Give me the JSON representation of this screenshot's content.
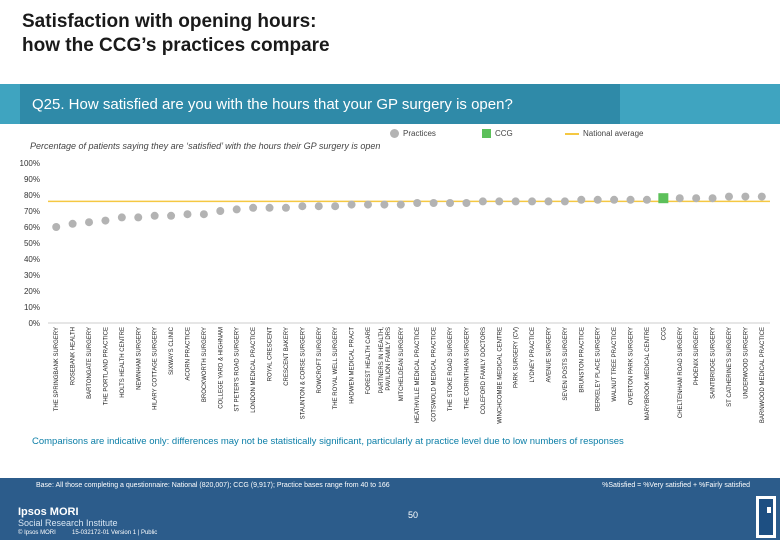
{
  "page": {
    "title_line1": "Satisfaction with opening hours:",
    "title_line2": "how the CCG’s practices compare",
    "question": "Q25. How satisfied are you with the hours that your GP surgery is open?",
    "subtitle": "Percentage of patients saying they are ‘satisfied’ with the hours their GP surgery is open",
    "note": "Comparisons are indicative only: differences may not be statistically significant, particularly at practice level due to low numbers of responses",
    "base": "Base: All those completing a questionnaire: National (820,007); CCG (9,917); Practice bases range from 40 to 166",
    "key": "%Satisfied = %Very satisfied + %Fairly satisfied",
    "brand_line1": "Ipsos MORI",
    "brand_line2": "Social Research Institute",
    "copyright": "© Ipsos MORI",
    "version": "15-032172-01 Version 1 | Public",
    "page_number": "50"
  },
  "colors": {
    "practice": "#b3b3b3",
    "ccg": "#5cc05a",
    "national": "#f5c842",
    "footer": "#2c5c8b",
    "accent": "#3fa4c0"
  },
  "chart_data": {
    "type": "scatter",
    "title": "Percentage of patients saying they are ‘satisfied’ with the hours their GP surgery is open",
    "ylim": [
      0,
      100
    ],
    "yticks": [
      "0%",
      "10%",
      "20%",
      "30%",
      "40%",
      "50%",
      "60%",
      "70%",
      "80%",
      "90%",
      "100%"
    ],
    "legend": {
      "practices": "Practices",
      "ccg": "CCG",
      "national": "National average"
    },
    "national_average": 76,
    "categories": [
      "THE SPRINGBANK SURGERY",
      "ROSEBANK HEALTH",
      "BARTONGATE SURGERY",
      "THE PORTLAND PRACTICE",
      "HOLTS HEALTH CENTRE",
      "NEWNHAM SURGERY",
      "HILARY COTTAGE SURGERY",
      "SIXWAYS CLINIC",
      "ACORN PRACTICE",
      "BROCKWORTH SURGERY",
      "COLLEGE YARD & HIGHNAM",
      "ST PETER'S ROAD SURGERY",
      "LONDON MEDICAL PRACTICE",
      "ROYAL CRESCENT",
      "CRESCENT BAKERY",
      "STAUNTON & CORSE SURGERY",
      "ROWCROFT SURGERY",
      "THE ROYAL WELL SURGERY",
      "HADWEN MEDICAL PRACT",
      "FOREST HEALTH CARE",
      "PARTNERS IN HEALTH, PAVILION FAMILY DRS",
      "MITCHELDEAN SURGERY",
      "HEATHVILLE MEDICAL PRACTICE",
      "COTSWOLD MEDICAL PRACTICE",
      "THE STOKE ROAD SURGERY",
      "THE CORINTHIAN SURGERY",
      "COLEFORD FAMILY DOCTORS",
      "WINCHCOMBE MEDICAL CENTRE",
      "PARK SURGERY (CV)",
      "LYDNEY PRACTICE",
      "AVENUE SURGERY",
      "SEVEN POSTS SURGERY",
      "BRUNSTON PRACTICE",
      "BERKELEY PLACE SURGERY",
      "WALNUT TREE PRACTICE",
      "OVERTON PARK SURGERY",
      "MARYBROOK MEDICAL CENTRE",
      "CCG",
      "CHELTENHAM ROAD SURGERY",
      "PHOENIX SURGERY",
      "SAINTBRIDGE SURGERY",
      "ST CATHERINE'S SURGERY",
      "UNDERWOOD SURGERY",
      "BARNWOOD MEDICAL PRACTICE"
    ],
    "values": [
      60,
      62,
      63,
      64,
      66,
      66,
      67,
      67,
      68,
      68,
      70,
      71,
      72,
      72,
      72,
      73,
      73,
      73,
      74,
      74,
      74,
      74,
      75,
      75,
      75,
      75,
      76,
      76,
      76,
      76,
      76,
      76,
      77,
      77,
      77,
      77,
      77,
      78,
      78,
      78,
      78,
      79,
      79,
      79
    ],
    "ccg_index": 37
  }
}
